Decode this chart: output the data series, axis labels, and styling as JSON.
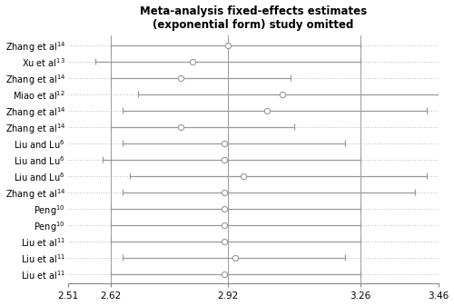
{
  "title": "Meta-analysis fixed-effects estimates\n(exponential form) study omitted",
  "xlim": [
    2.51,
    3.46
  ],
  "xticks": [
    2.51,
    2.62,
    2.92,
    3.26,
    3.46
  ],
  "xtick_labels": [
    "2.51",
    "2.62",
    "2.92",
    "3.26",
    "3.46"
  ],
  "vlines": [
    2.62,
    2.92,
    3.26
  ],
  "study_labels": [
    "Zhang et al$^{14}$",
    "Xu et al$^{13}$",
    "Zhang et al$^{14}$",
    "Miao et al$^{12}$",
    "Zhang et al$^{14}$",
    "Zhang et al$^{14}$",
    "Liu and Lu$^{6}$",
    "Liu and Lu$^{6}$",
    "Liu and Lu$^{6}$",
    "Zhang et al$^{14}$",
    "Peng$^{10}$",
    "Peng$^{10}$",
    "Liu et al$^{11}$",
    "Liu et al$^{11}$",
    "Liu et al$^{11}$"
  ],
  "point_estimates": [
    2.92,
    2.83,
    2.8,
    3.06,
    3.02,
    2.8,
    2.91,
    2.91,
    2.96,
    2.91,
    2.91,
    2.91,
    2.91,
    2.94,
    2.91
  ],
  "ci_low": [
    2.62,
    2.58,
    2.62,
    2.69,
    2.65,
    2.62,
    2.65,
    2.6,
    2.67,
    2.65,
    2.62,
    2.62,
    2.62,
    2.65,
    2.62
  ],
  "ci_high": [
    3.26,
    3.26,
    3.08,
    3.46,
    3.43,
    3.09,
    3.22,
    3.26,
    3.43,
    3.4,
    3.26,
    3.26,
    3.26,
    3.22,
    3.26
  ],
  "background_color": "#ffffff",
  "dot_color": "white",
  "dot_edgecolor": "#999999",
  "line_color": "#999999",
  "vline_color": "#999999",
  "dotted_line_color": "#bbbbbb",
  "title_fontsize": 8.5,
  "label_fontsize": 7.0,
  "tick_fontsize": 7.5
}
